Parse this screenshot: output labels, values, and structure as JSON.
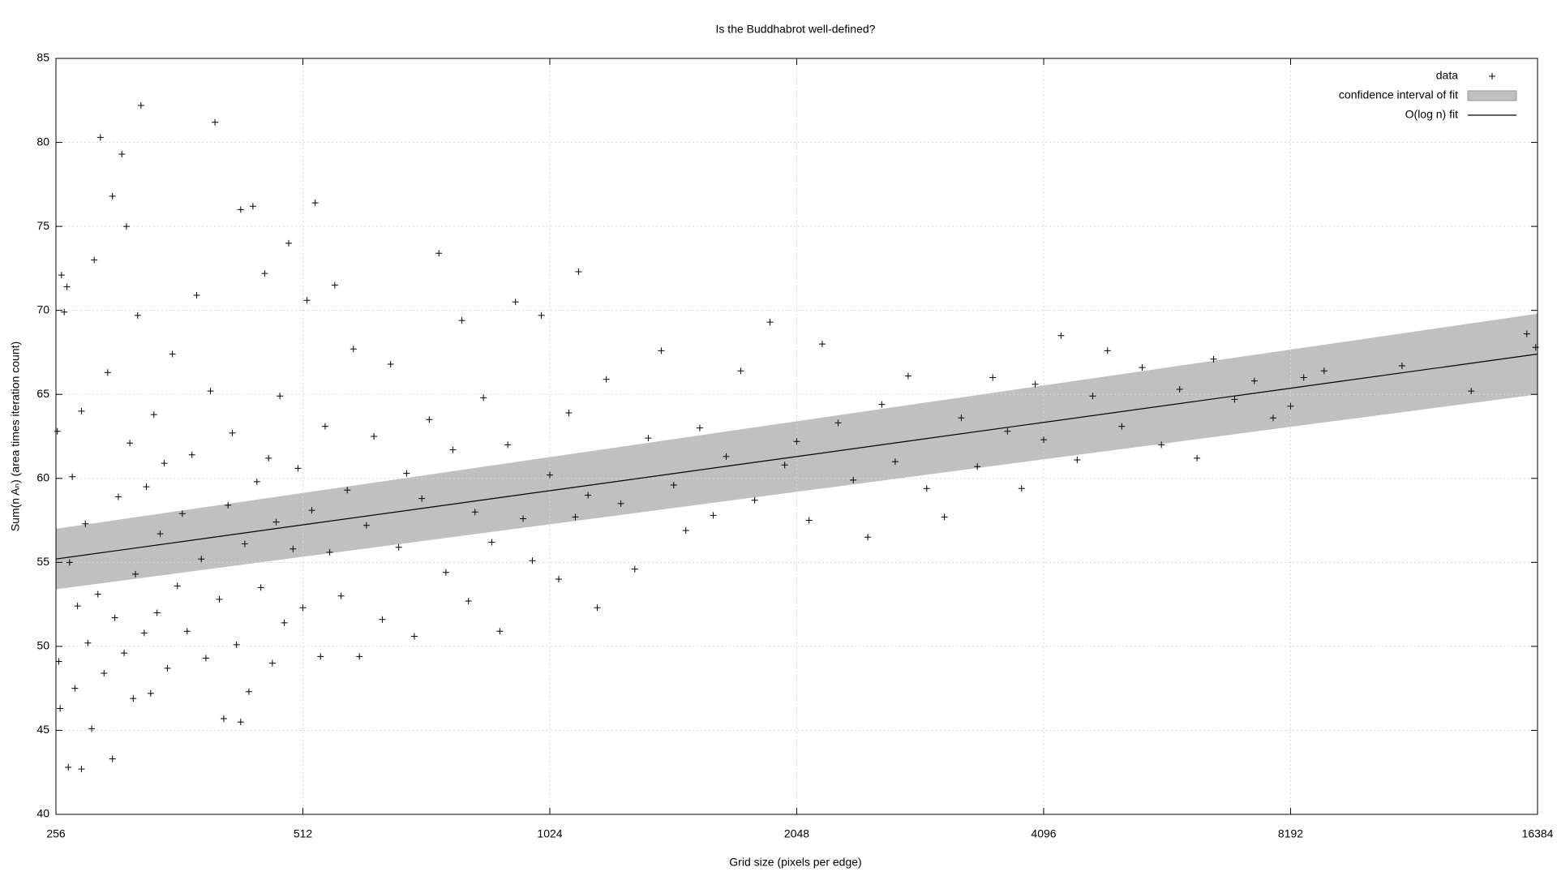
{
  "chart_data": {
    "type": "scatter",
    "title": "Is the Buddhabrot well-defined?",
    "x_label": "Grid size (pixels per edge)",
    "y_label": "Sum(n Aₙ) (area times iteration count)",
    "x_scale": "log2",
    "xlim": [
      256,
      16384
    ],
    "xticks": [
      256,
      512,
      1024,
      2048,
      4096,
      8192,
      16384
    ],
    "ylim": [
      40,
      85
    ],
    "yticks": [
      40,
      45,
      50,
      55,
      60,
      65,
      70,
      75,
      80,
      85
    ],
    "grid": true,
    "legend": "top-right",
    "series": [
      {
        "name": "data",
        "type": "scatter",
        "color": "#000000",
        "x": [
          257,
          258,
          259,
          260,
          262,
          264,
          266,
          268,
          270,
          272,
          275,
          278,
          280,
          283,
          285,
          288,
          290,
          293,
          296,
          300,
          302,
          305,
          308,
          310,
          312,
          315,
          318,
          320,
          322,
          325,
          328,
          330,
          334,
          337,
          340,
          343,
          347,
          350,
          355,
          360,
          365,
          370,
          375,
          380,
          385,
          390,
          395,
          400,
          405,
          410,
          415,
          420,
          425,
          430,
          435,
          440,
          445,
          450,
          455,
          460,
          465,
          470,
          475,
          480,
          486,
          492,
          498,
          505,
          512,
          518,
          525,
          530,
          538,
          545,
          552,
          560,
          570,
          580,
          590,
          600,
          612,
          625,
          640,
          655,
          670,
          685,
          700,
          715,
          730,
          750,
          765,
          780,
          800,
          815,
          830,
          850,
          870,
          890,
          910,
          930,
          950,
          975,
          1000,
          1024,
          1050,
          1080,
          1100,
          1110,
          1140,
          1170,
          1200,
          1250,
          1300,
          1350,
          1400,
          1450,
          1500,
          1560,
          1620,
          1680,
          1750,
          1820,
          1900,
          1980,
          2048,
          2120,
          2200,
          2300,
          2400,
          2500,
          2600,
          2700,
          2800,
          2950,
          3100,
          3250,
          3400,
          3550,
          3700,
          3850,
          4000,
          4096,
          4300,
          4500,
          4700,
          4900,
          5100,
          5400,
          5700,
          6000,
          6300,
          6600,
          7000,
          7400,
          7800,
          8192,
          8500,
          9000,
          11200,
          13600,
          15900,
          16300,
          300,
          265,
          275,
          430
        ],
        "values": [
          62.8,
          49.1,
          46.3,
          72.1,
          69.9,
          71.4,
          55.0,
          60.1,
          47.5,
          52.4,
          64.0,
          57.3,
          50.2,
          45.1,
          73.0,
          53.1,
          80.3,
          48.4,
          66.3,
          76.8,
          51.7,
          58.9,
          79.3,
          49.6,
          75.0,
          62.1,
          46.9,
          54.3,
          69.7,
          82.2,
          50.8,
          59.5,
          47.2,
          63.8,
          52.0,
          56.7,
          60.9,
          48.7,
          67.4,
          53.6,
          57.9,
          50.9,
          61.4,
          70.9,
          55.2,
          49.3,
          65.2,
          81.2,
          52.8,
          45.7,
          58.4,
          62.7,
          50.1,
          76.0,
          56.1,
          47.3,
          76.2,
          59.8,
          53.5,
          72.2,
          61.2,
          49.0,
          57.4,
          64.9,
          51.4,
          74.0,
          55.8,
          60.6,
          52.3,
          70.6,
          58.1,
          76.4,
          49.4,
          63.1,
          55.6,
          71.5,
          53.0,
          59.3,
          67.7,
          49.4,
          57.2,
          62.5,
          51.6,
          66.8,
          55.9,
          60.3,
          50.6,
          58.8,
          63.5,
          73.4,
          54.4,
          61.7,
          69.4,
          52.7,
          58.0,
          64.8,
          56.2,
          50.9,
          62.0,
          70.5,
          57.6,
          55.1,
          69.7,
          60.2,
          54.0,
          63.9,
          57.7,
          72.3,
          59.0,
          52.3,
          65.9,
          58.5,
          54.6,
          62.4,
          67.6,
          59.6,
          56.9,
          63.0,
          57.8,
          61.3,
          66.4,
          58.7,
          69.3,
          60.8,
          62.2,
          57.5,
          68.0,
          63.3,
          59.9,
          56.5,
          64.4,
          61.0,
          66.1,
          59.4,
          57.7,
          63.6,
          60.7,
          66.0,
          62.8,
          59.4,
          65.6,
          62.3,
          68.5,
          61.1,
          64.9,
          67.6,
          63.1,
          66.6,
          62.0,
          65.3,
          61.2,
          67.1,
          64.7,
          65.8,
          63.6,
          64.3,
          66.0,
          66.4,
          66.7,
          65.2,
          68.6,
          67.8,
          43.3,
          42.8,
          42.7,
          45.5
        ]
      },
      {
        "name": "confidence interval of fit",
        "type": "band",
        "color": "#c0c0c0",
        "x": [
          256,
          16384
        ],
        "lower": [
          53.4,
          65.0
        ],
        "upper": [
          57.0,
          69.8
        ]
      },
      {
        "name": "O(log n) fit",
        "type": "line",
        "color": "#000000",
        "x": [
          256,
          16384
        ],
        "values": [
          55.2,
          67.4
        ]
      }
    ]
  }
}
